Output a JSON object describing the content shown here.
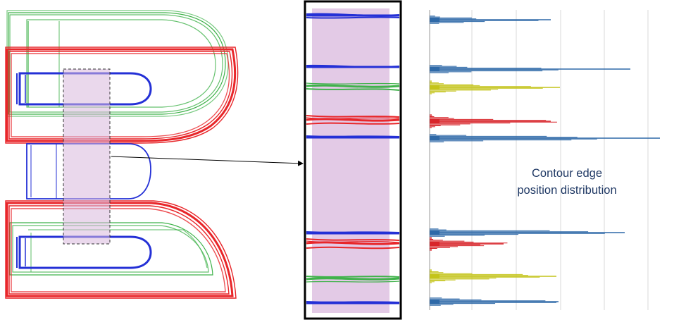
{
  "annotation": {
    "line1": "Contour edge",
    "line2": "position distribution"
  },
  "colors": {
    "red": "#e8262a",
    "green": "#3fb24a",
    "blue": "#2430d6",
    "roi_fill": "#d9b8dd",
    "hist_blue": "#2e69a8",
    "hist_yellow": "#c4c41a",
    "hist_red": "#d8242a"
  },
  "histogram": {
    "peaks": [
      {
        "color": "blue",
        "y": 28,
        "max": 172
      },
      {
        "color": "blue",
        "y": 98,
        "max": 285
      },
      {
        "color": "yellow",
        "y": 124,
        "max": 185
      },
      {
        "color": "red",
        "y": 172,
        "max": 172
      },
      {
        "color": "blue",
        "y": 196,
        "max": 327
      },
      {
        "color": "blue",
        "y": 330,
        "max": 277
      },
      {
        "color": "red",
        "y": 346,
        "max": 105
      },
      {
        "color": "yellow",
        "y": 392,
        "max": 180
      },
      {
        "color": "blue",
        "y": 428,
        "max": 183
      }
    ]
  }
}
